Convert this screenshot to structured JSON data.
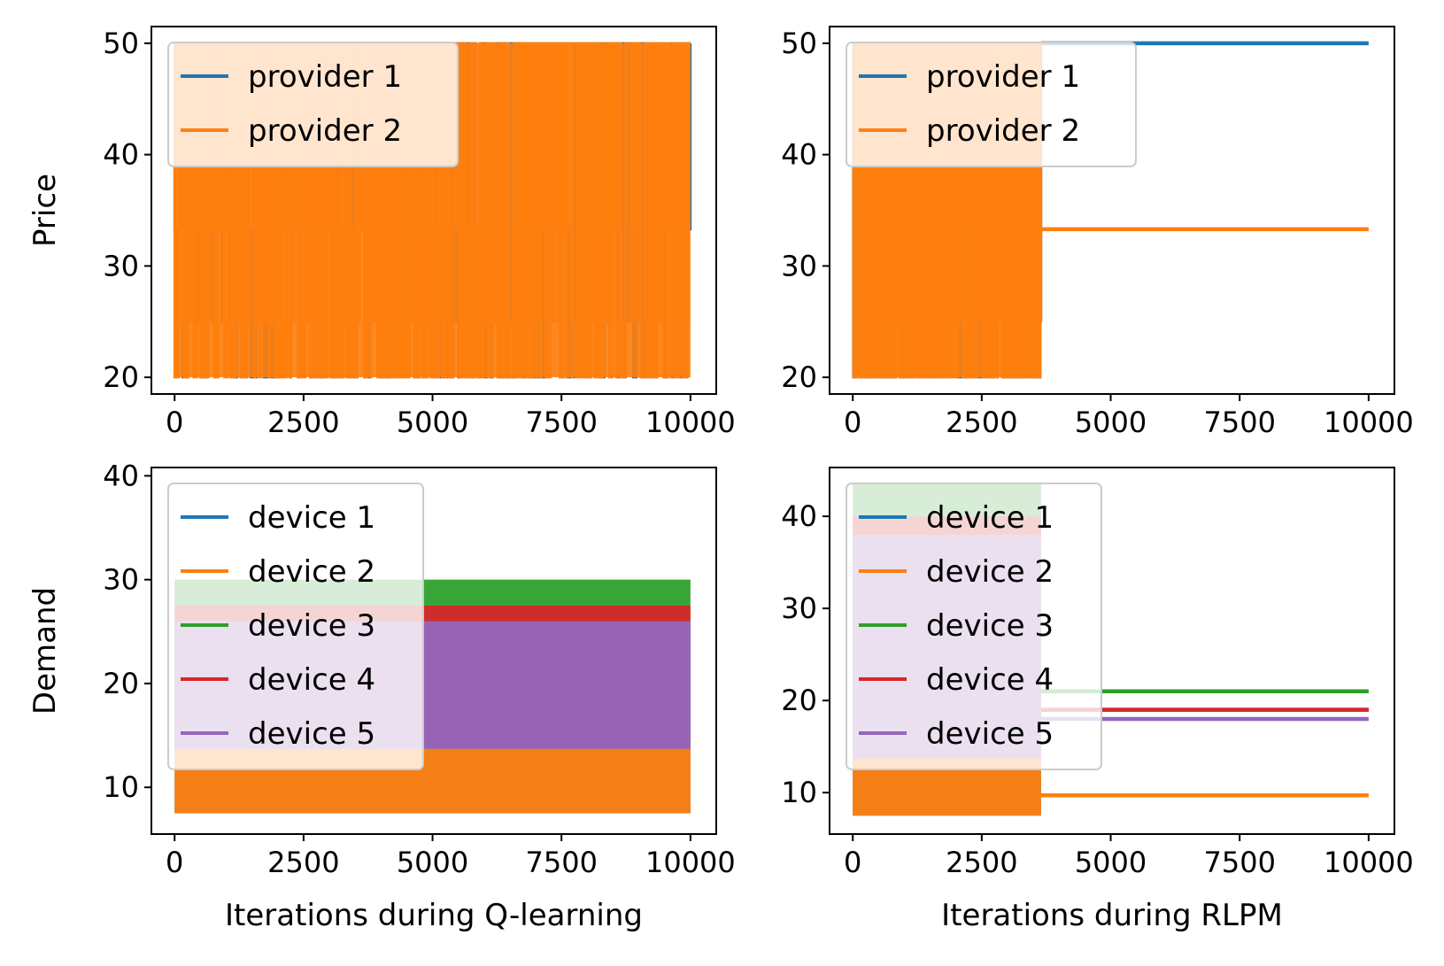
{
  "colors": {
    "provider_1": "#1f77b4",
    "provider_2": "#ff7f0e",
    "device_1": "#1f77b4",
    "device_2": "#ff7f0e",
    "device_3": "#2ca02c",
    "device_4": "#d62728",
    "device_5": "#9467bd"
  },
  "chart_data": [
    {
      "id": "q_price",
      "type": "line",
      "title": "",
      "xlabel": "",
      "ylabel": "Price",
      "xlim": [
        -450,
        10500
      ],
      "ylim": [
        18.5,
        51.5
      ],
      "xticks": [
        0,
        2500,
        5000,
        7500,
        10000
      ],
      "yticks": [
        20,
        30,
        40,
        50
      ],
      "grid": false,
      "legend_position": "upper-left",
      "series": [
        {
          "name": "provider 1",
          "pattern": "oscillating",
          "x_range": [
            0,
            10000
          ],
          "levels": [
            20,
            25,
            33.3,
            50
          ],
          "converged_value": null
        },
        {
          "name": "provider 2",
          "pattern": "oscillating",
          "x_range": [
            0,
            10000
          ],
          "levels": [
            20,
            25,
            33.3,
            50
          ],
          "converged_value": null
        }
      ]
    },
    {
      "id": "rlpm_price",
      "type": "line",
      "title": "",
      "xlabel": "",
      "ylabel": "",
      "xlim": [
        -450,
        10500
      ],
      "ylim": [
        18.5,
        51.5
      ],
      "xticks": [
        0,
        2500,
        5000,
        7500,
        10000
      ],
      "yticks": [
        20,
        30,
        40,
        50
      ],
      "grid": false,
      "legend_position": "upper-left",
      "series": [
        {
          "name": "provider 1",
          "pattern": "oscillating-then-flat",
          "x_range": [
            0,
            3650
          ],
          "levels": [
            20,
            25,
            33.3,
            50
          ],
          "converged_value": 50.0
        },
        {
          "name": "provider 2",
          "pattern": "oscillating-then-flat",
          "x_range": [
            0,
            3650
          ],
          "levels": [
            20,
            25,
            33.3,
            50
          ],
          "converged_value": 33.3
        }
      ]
    },
    {
      "id": "q_demand",
      "type": "line",
      "title": "",
      "xlabel": "Iterations during Q-learning",
      "ylabel": "Demand",
      "xlim": [
        -450,
        10500
      ],
      "ylim": [
        5.5,
        40.8
      ],
      "xticks": [
        0,
        2500,
        5000,
        7500,
        10000
      ],
      "yticks": [
        10,
        20,
        30,
        40
      ],
      "grid": false,
      "legend_position": "upper-left",
      "series": [
        {
          "name": "device 1",
          "pattern": "oscillating",
          "x_range": [
            0,
            10000
          ],
          "band": [
            7.5,
            21.7
          ],
          "converged_value": null
        },
        {
          "name": "device 2",
          "pattern": "oscillating",
          "x_range": [
            0,
            10000
          ],
          "band": [
            7.5,
            21.7
          ],
          "converged_value": null
        },
        {
          "name": "device 3",
          "pattern": "oscillating",
          "x_range": [
            0,
            10000
          ],
          "band": [
            14.0,
            30.0
          ],
          "converged_value": null
        },
        {
          "name": "device 4",
          "pattern": "oscillating",
          "x_range": [
            0,
            10000
          ],
          "band": [
            13.8,
            27.5
          ],
          "converged_value": null
        },
        {
          "name": "device 5",
          "pattern": "oscillating",
          "x_range": [
            0,
            10000
          ],
          "band": [
            13.7,
            26.0
          ],
          "converged_value": null
        }
      ]
    },
    {
      "id": "rlpm_demand",
      "type": "line",
      "title": "",
      "xlabel": "Iterations during RLPM",
      "ylabel": "",
      "xlim": [
        -450,
        10500
      ],
      "ylim": [
        5.5,
        45.3
      ],
      "xticks": [
        0,
        2500,
        5000,
        7500,
        10000
      ],
      "yticks": [
        10,
        20,
        30,
        40
      ],
      "grid": false,
      "legend_position": "upper-left",
      "series": [
        {
          "name": "device 1",
          "pattern": "oscillating-then-flat",
          "x_range": [
            0,
            3650
          ],
          "band": [
            7.5,
            38.0
          ],
          "converged_value": 19.0
        },
        {
          "name": "device 2",
          "pattern": "oscillating-then-flat",
          "x_range": [
            0,
            3650
          ],
          "band": [
            7.5,
            27.0
          ],
          "converged_value": 9.7
        },
        {
          "name": "device 3",
          "pattern": "oscillating-then-flat",
          "x_range": [
            0,
            3650
          ],
          "band": [
            14.0,
            43.5
          ],
          "converged_value": 21.0
        },
        {
          "name": "device 4",
          "pattern": "oscillating-then-flat",
          "x_range": [
            0,
            3650
          ],
          "band": [
            13.8,
            40.0
          ],
          "converged_value": 19.0
        },
        {
          "name": "device 5",
          "pattern": "oscillating-then-flat",
          "x_range": [
            0,
            3650
          ],
          "band": [
            13.7,
            38.0
          ],
          "converged_value": 18.0
        }
      ]
    }
  ]
}
